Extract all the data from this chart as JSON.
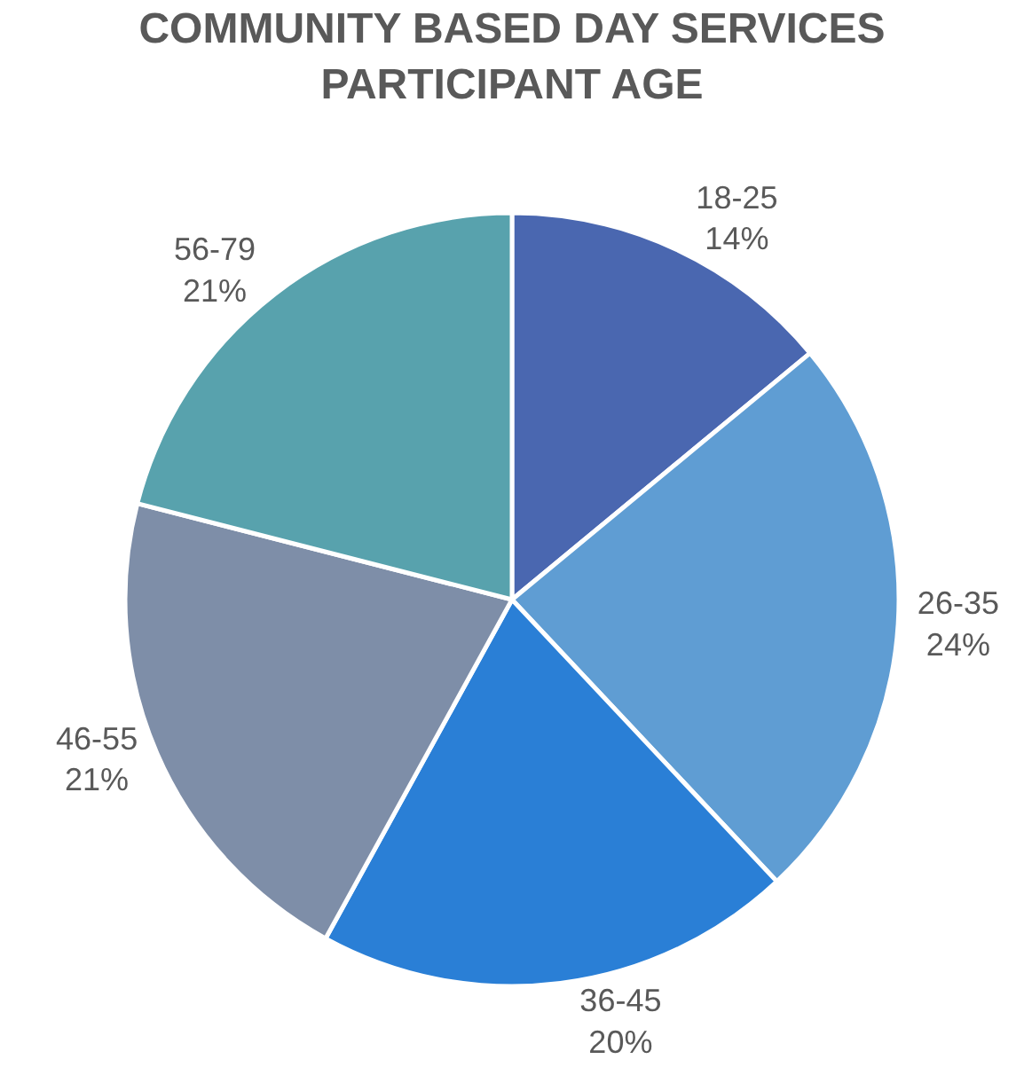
{
  "chart_data": {
    "type": "pie",
    "title": "COMMUNITY BASED DAY SERVICES\nPARTICIPANT AGE",
    "categories": [
      "18-25",
      "26-35",
      "36-45",
      "46-55",
      "56-79"
    ],
    "values": [
      14,
      24,
      20,
      21,
      21
    ],
    "value_labels": [
      "14%",
      "24%",
      "20%",
      "21%",
      "21%"
    ],
    "colors": [
      "#4a67b0",
      "#5f9dd3",
      "#2a7fd6",
      "#7e8ea8",
      "#58a2ad"
    ],
    "legend": false
  }
}
